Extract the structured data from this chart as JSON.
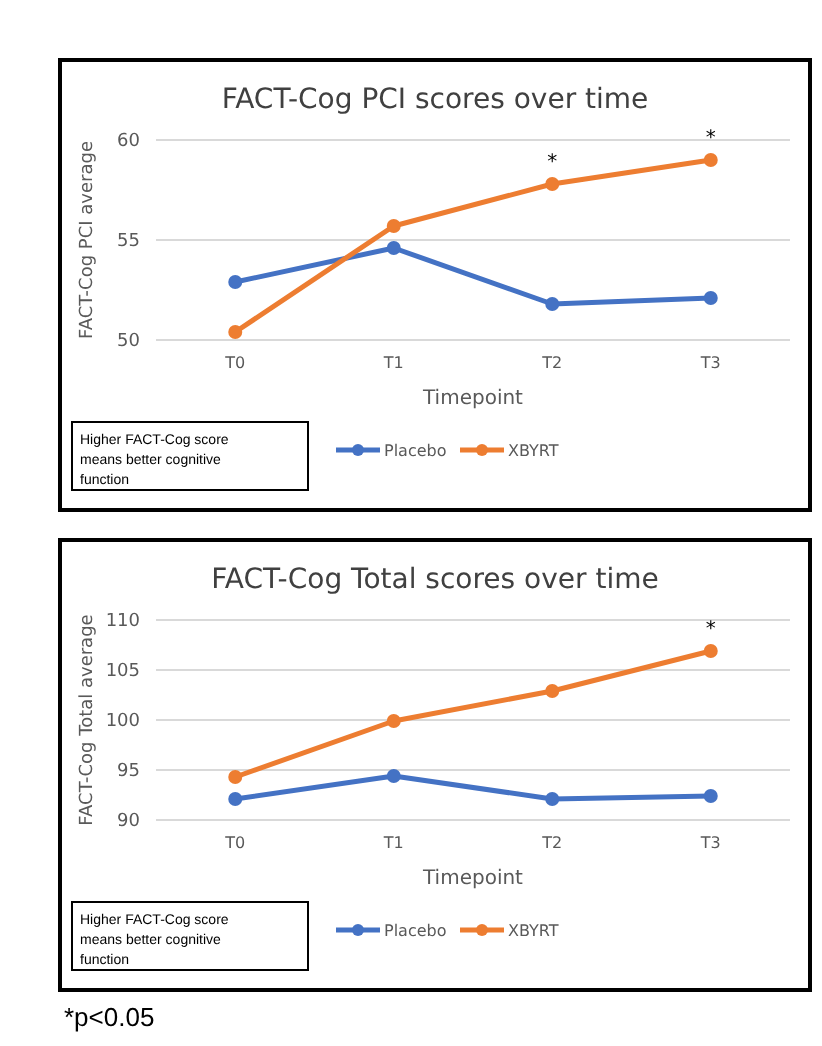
{
  "chart_data": [
    {
      "type": "line",
      "title": "FACT-Cog PCI scores over time",
      "xlabel": "Timepoint",
      "ylabel": "FACT-Cog PCI average",
      "categories": [
        "T0",
        "T1",
        "T2",
        "T3"
      ],
      "series": [
        {
          "name": "Placebo",
          "color": "#4472c4",
          "values": [
            52.9,
            54.6,
            51.8,
            52.1
          ]
        },
        {
          "name": "XBYRT",
          "color": "#ed7d31",
          "values": [
            50.4,
            55.7,
            57.8,
            59.0
          ]
        }
      ],
      "ylim": [
        50,
        60
      ],
      "yticks": [
        50,
        55,
        60
      ],
      "grid": "y",
      "legend": "bottom",
      "marker": "circle",
      "line_style": "solid",
      "annotations": [
        "Higher FACT-Cog score means better cognitive function",
        {
          "text": "*",
          "x": "T2",
          "y": 57.8
        },
        {
          "text": "*",
          "x": "T3",
          "y": 59.0
        }
      ]
    },
    {
      "type": "line",
      "title": "FACT-Cog Total scores over time",
      "xlabel": "Timepoint",
      "ylabel": "FACT-Cog Total average",
      "categories": [
        "T0",
        "T1",
        "T2",
        "T3"
      ],
      "series": [
        {
          "name": "Placebo",
          "color": "#4472c4",
          "values": [
            92.1,
            94.4,
            92.1,
            92.4
          ]
        },
        {
          "name": "XBYRT",
          "color": "#ed7d31",
          "values": [
            94.3,
            99.9,
            102.9,
            106.9
          ]
        }
      ],
      "ylim": [
        90,
        110
      ],
      "yticks": [
        90,
        95,
        100,
        105,
        110
      ],
      "grid": "y",
      "legend": "bottom",
      "marker": "circle",
      "line_style": "solid",
      "annotations": [
        "Higher FACT-Cog score means better cognitive function",
        {
          "text": "*",
          "x": "T3",
          "y": 106.9
        },
        "*p<0.05"
      ]
    }
  ]
}
